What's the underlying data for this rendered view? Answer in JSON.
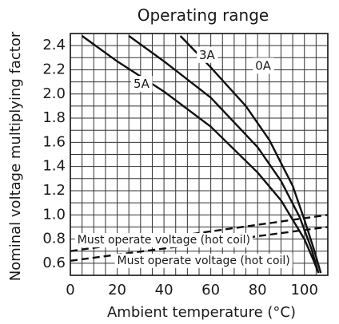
{
  "chart_data": {
    "type": "line",
    "title": "Operating range",
    "xlabel": "Ambient temperature (°C)",
    "ylabel": "Nominal voltage multiplying factor",
    "xlim": [
      0,
      110
    ],
    "ylim": [
      0.5,
      2.5
    ],
    "xticks": [
      0,
      20,
      40,
      60,
      80,
      100
    ],
    "yticks": [
      0.6,
      0.8,
      1.0,
      1.2,
      1.4,
      1.6,
      1.8,
      2.0,
      2.2,
      2.4
    ],
    "grid": true,
    "series": [
      {
        "name": "5A",
        "style": "solid",
        "x": [
          5,
          20,
          40,
          60,
          80,
          90,
          100,
          104,
          106
        ],
        "y": [
          2.48,
          2.27,
          2.02,
          1.73,
          1.35,
          1.12,
          0.8,
          0.62,
          0.52
        ]
      },
      {
        "name": "3A",
        "style": "solid",
        "x": [
          25,
          40,
          60,
          80,
          90,
          98,
          103,
          106
        ],
        "y": [
          2.48,
          2.27,
          1.97,
          1.56,
          1.28,
          0.98,
          0.72,
          0.52
        ]
      },
      {
        "name": "0A",
        "style": "solid",
        "x": [
          47,
          60,
          75,
          85,
          95,
          100,
          104,
          107
        ],
        "y": [
          2.48,
          2.22,
          1.9,
          1.62,
          1.24,
          0.96,
          0.72,
          0.52
        ]
      },
      {
        "name": "Must operate voltage (hot coil)",
        "style": "dashed",
        "x": [
          0,
          110
        ],
        "y": [
          0.7,
          1.0
        ]
      },
      {
        "name": "Must operate voltage (hot coil)",
        "style": "dashed",
        "x": [
          0,
          110
        ],
        "y": [
          0.62,
          0.9
        ]
      }
    ],
    "annotations": [
      {
        "text": "5A",
        "x": 27,
        "y": 2.08
      },
      {
        "text": "3A",
        "x": 55,
        "y": 2.32
      },
      {
        "text": "0A",
        "x": 79,
        "y": 2.23
      },
      {
        "text": "Must operate voltage (hot coil)",
        "x": 3,
        "y": 0.79
      },
      {
        "text": "Must operate voltage (hot coil)",
        "x": 20,
        "y": 0.62
      }
    ]
  }
}
